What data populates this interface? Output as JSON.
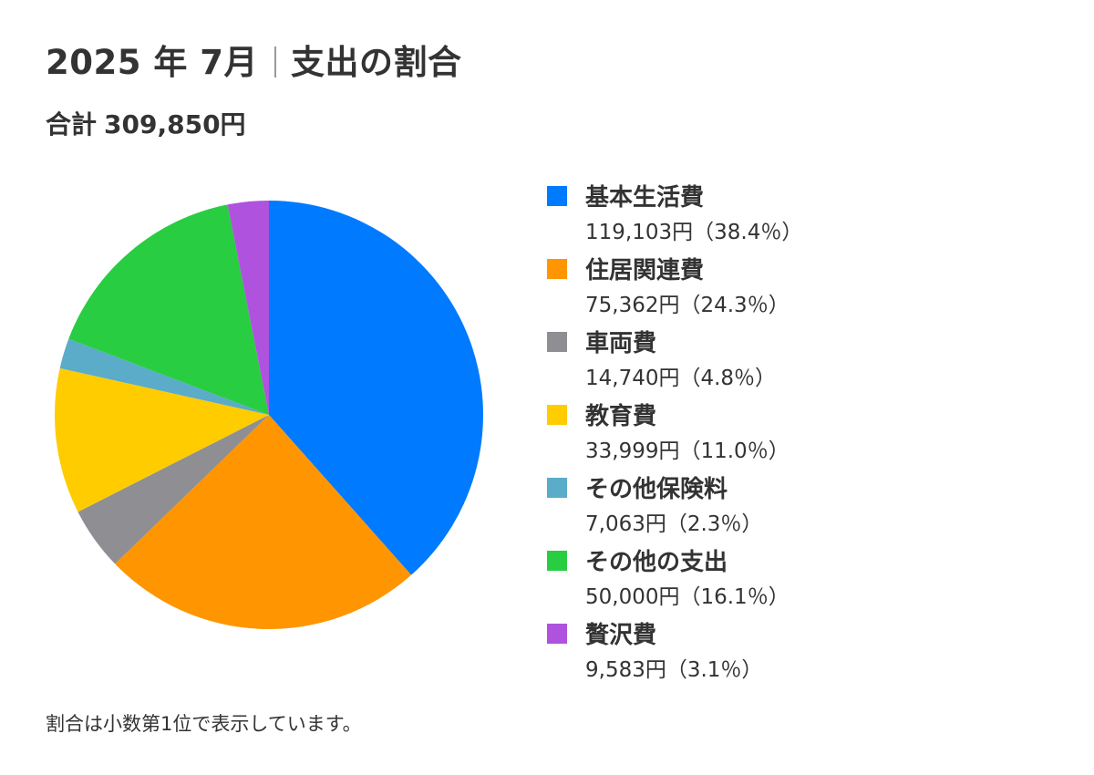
{
  "header": {
    "title_left": "2025 年 7月",
    "title_right": "支出の割合",
    "total_label": "合計",
    "total_value": "309,850円"
  },
  "footnote": "割合は小数第1位で表示しています。",
  "chart_data": {
    "type": "pie",
    "title": "2025 年 7月｜支出の割合",
    "subtitle": "合計 309,850円",
    "total": 309850,
    "start_angle_deg": 0,
    "direction": "clockwise",
    "legend_position": "right",
    "slices": [
      {
        "label": "基本生活費",
        "value": 119103,
        "value_text": "119,103円",
        "percent_text": "（38.4％）",
        "color": "#007AFF"
      },
      {
        "label": "住居関連費",
        "value": 75362,
        "value_text": "75,362円",
        "percent_text": "（24.3％）",
        "color": "#FF9500"
      },
      {
        "label": "車両費",
        "value": 14740,
        "value_text": "14,740円",
        "percent_text": "（4.8％）",
        "color": "#8E8E93"
      },
      {
        "label": "教育費",
        "value": 33999,
        "value_text": "33,999円",
        "percent_text": "（11.0％）",
        "color": "#FFCC00"
      },
      {
        "label": "その他保険料",
        "value": 7063,
        "value_text": "7,063円",
        "percent_text": "（2.3％）",
        "color": "#5AACC8"
      },
      {
        "label": "その他の支出",
        "value": 50000,
        "value_text": "50,000円",
        "percent_text": "（16.1％）",
        "color": "#28CD41"
      },
      {
        "label": "贅沢費",
        "value": 9583,
        "value_text": "9,583円",
        "percent_text": "（3.1％）",
        "color": "#AF52DE"
      }
    ]
  }
}
